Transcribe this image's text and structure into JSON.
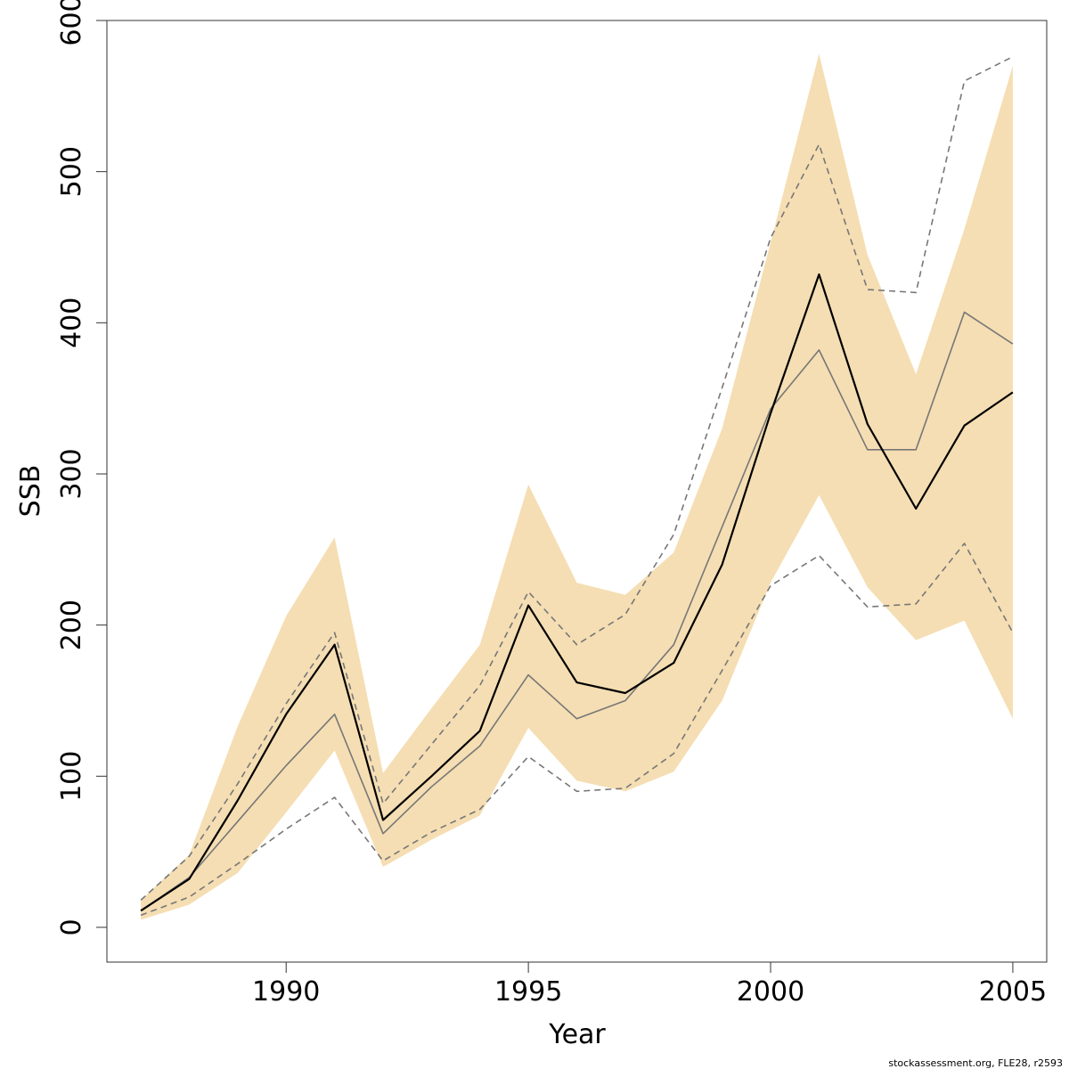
{
  "chart_data": {
    "type": "line",
    "xlabel": "Year",
    "ylabel": "SSB",
    "xlim": [
      1986.3,
      2005.7
    ],
    "ylim": [
      -23,
      600
    ],
    "x_ticks": [
      "1990",
      "1995",
      "2000",
      "2005"
    ],
    "y_ticks": [
      "0",
      "100",
      "200",
      "300",
      "400",
      "500",
      "600"
    ],
    "x": [
      1987,
      1988,
      1989,
      1990,
      1991,
      1992,
      1993,
      1994,
      1995,
      1996,
      1997,
      1998,
      1999,
      2000,
      2001,
      2002,
      2003,
      2004,
      2005
    ],
    "band": {
      "color": "#f5deb3",
      "lower": [
        5,
        15,
        36,
        76,
        117,
        40,
        58,
        74,
        132,
        97,
        90,
        103,
        150,
        228,
        286,
        225,
        190,
        203,
        138
      ],
      "upper": [
        18,
        48,
        133,
        206,
        258,
        102,
        145,
        187,
        293,
        228,
        220,
        248,
        330,
        453,
        578,
        445,
        366,
        462,
        570
      ]
    },
    "series": [
      {
        "values": [
          11,
          32,
          84,
          141,
          187,
          71,
          100,
          130,
          213,
          162,
          155,
          175,
          240,
          340,
          432,
          333,
          277,
          332,
          354
        ],
        "color": "#000000",
        "width": 2.2,
        "dash": "none"
      },
      {
        "values": [
          11,
          33,
          70,
          107,
          141,
          62,
          93,
          120,
          167,
          138,
          150,
          187,
          265,
          343,
          382,
          316,
          316,
          407,
          386
        ],
        "color": "#777777",
        "width": 1.6,
        "dash": "none"
      },
      {
        "values": [
          18,
          47,
          95,
          148,
          195,
          82,
          121,
          160,
          222,
          187,
          207,
          260,
          357,
          456,
          518,
          422,
          420,
          560,
          576
        ],
        "color": "#777777",
        "width": 1.6,
        "dash": "7,5"
      },
      {
        "values": [
          8,
          20,
          42,
          65,
          86,
          44,
          63,
          78,
          113,
          90,
          92,
          115,
          170,
          226,
          246,
          212,
          214,
          254,
          195
        ],
        "color": "#777777",
        "width": 1.6,
        "dash": "7,5"
      }
    ]
  },
  "footer": "stockassessment.org, FLE28, r2593"
}
